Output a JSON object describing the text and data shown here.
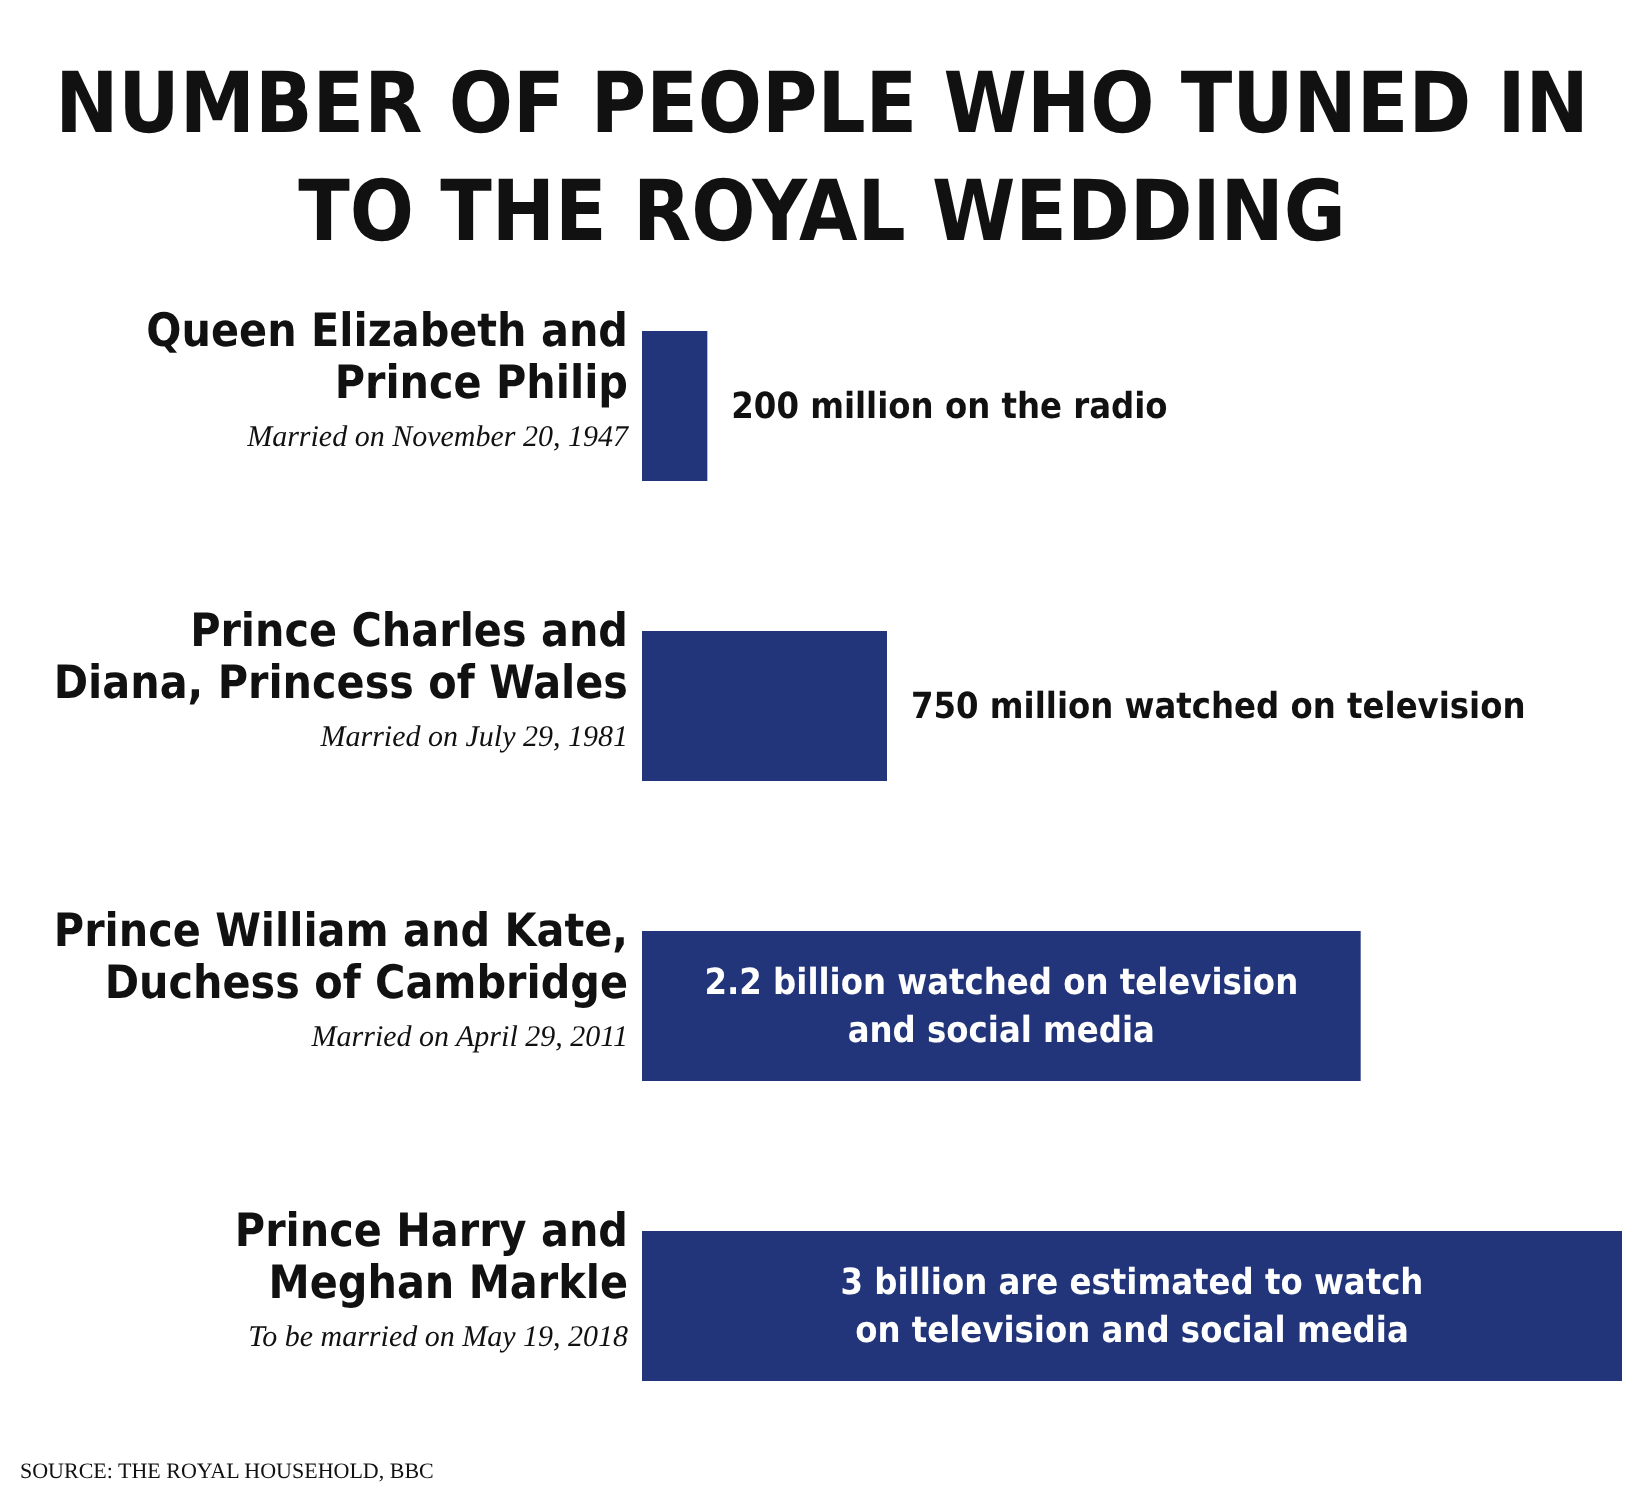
{
  "chart_data": {
    "type": "bar",
    "orientation": "horizontal",
    "title": "NUMBER OF PEOPLE WHO TUNED IN\nTO THE ROYAL WEDDING",
    "categories": [
      "Queen Elizabeth and\nPrince Philip\nMarried on November 20, 1947",
      "Prince Charles and\nDiana, Princess of Wales\nMarried on July 29, 1981",
      "Prince William and Kate,\nDuchess of Cambridge\nMarried on April 29, 2011",
      "Prince Harry and\nMeghan Markle\nTo be married on May 19, 2018"
    ],
    "values": [
      200000000,
      750000000,
      2200000000,
      3000000000
    ],
    "value_labels": [
      "200 million on the radio",
      "750 million watched on television",
      "2.2 billion watched on television\nand social media",
      "3 billion are estimated to watch\non television and social media"
    ],
    "color": "#22357a",
    "annotations": [
      "SOURCE: THE ROYAL HOUSEHOLD, BBC"
    ]
  }
}
